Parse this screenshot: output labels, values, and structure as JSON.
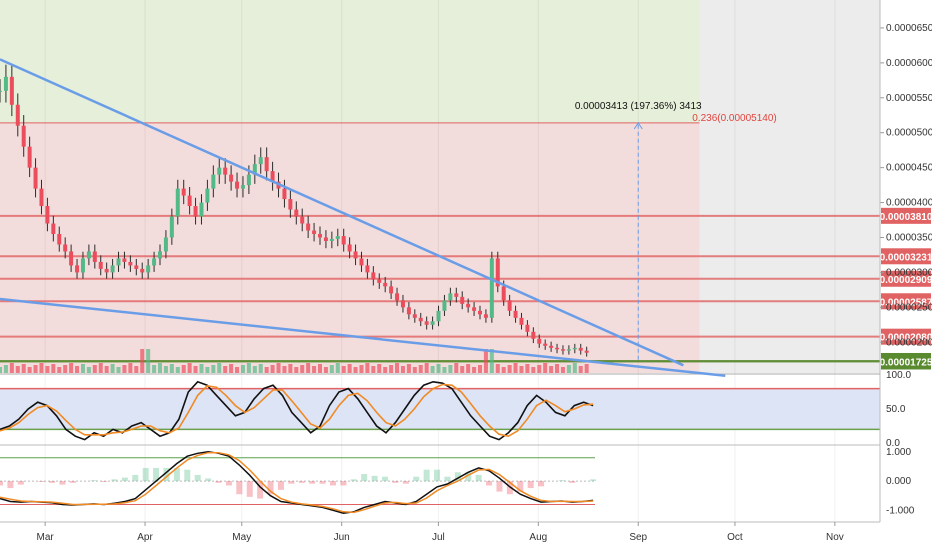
{
  "colors": {
    "bg": "#ffffff",
    "profit_zone": "#e6efd9",
    "loss_zone": "#f3dcdc",
    "future_zone": "#ececec",
    "up": "#53b987",
    "down": "#eb4d5c",
    "wick": "#2b2b2b",
    "resistance": "#e06262",
    "support": "#5a8a2f",
    "trendline": "#6a9de8",
    "stoch_k": "#111111",
    "stoch_d": "#f08a24",
    "stoch_band": "#dde4f5",
    "stoch_hi": "#e06262",
    "stoch_lo": "#6aa04a",
    "axis_text": "#333333"
  },
  "axis": {
    "months": [
      {
        "label": "Mar",
        "date": "2018-03-01"
      },
      {
        "label": "Apr",
        "date": "2018-04-01"
      },
      {
        "label": "May",
        "date": "2018-05-01"
      },
      {
        "label": "Jun",
        "date": "2018-06-01"
      },
      {
        "label": "Jul",
        "date": "2018-07-01"
      },
      {
        "label": "Aug",
        "date": "2018-08-01"
      },
      {
        "label": "Sep",
        "date": "2018-09-01"
      },
      {
        "label": "Oct",
        "date": "2018-10-01"
      },
      {
        "label": "Nov",
        "date": "2018-11-01"
      }
    ],
    "price_ticks": [
      "0.00006500",
      "0.00006000",
      "0.00005500",
      "0.00005000",
      "0.00004500",
      "0.00004000",
      "0.00003500",
      "0.00003000",
      "0.00002500",
      "0.00002000"
    ],
    "stoch_ticks": [
      "100.0",
      "50.0",
      "0.0"
    ],
    "macd_ticks": [
      "1.000",
      "0.000",
      "-1.000"
    ]
  },
  "annotations": {
    "measure": "0.00003413 (197.36%) 3413",
    "fib": "0.236(0.00005140)"
  },
  "chart_data": [
    {
      "type": "candlestick",
      "title": "",
      "x_range": [
        "2018-02-15",
        "2018-11-15"
      ],
      "ylim": [
        1.56e-05,
        6.9e-05
      ],
      "levels": [
        {
          "value": "0.00003810",
          "kind": "resistance"
        },
        {
          "value": "0.00003231",
          "kind": "resistance"
        },
        {
          "value": "0.00002909",
          "kind": "resistance"
        },
        {
          "value": "0.00002587",
          "kind": "resistance"
        },
        {
          "value": "0.00002080",
          "kind": "resistance"
        },
        {
          "value": "0.00001732",
          "kind": "support"
        },
        {
          "value": "0.00001725",
          "kind": "support"
        }
      ],
      "fib_level": 5.14e-05,
      "trendlines": [
        {
          "name": "upper",
          "from": [
            "2018-02-15",
            6.05e-05
          ],
          "to": [
            "2018-09-15",
            1.67e-05
          ]
        },
        {
          "name": "lower",
          "from": [
            "2018-02-15",
            2.62e-05
          ],
          "to": [
            "2018-09-28",
            1.52e-05
          ]
        }
      ],
      "projection": {
        "date": "2018-09-01",
        "from": 1.75e-05,
        "to": 5.14e-05
      },
      "zones": {
        "profit_top": 6.9e-05,
        "loss_top": 5.14e-05,
        "zone_end": "2018-09-20"
      },
      "series": {
        "start": "2018-02-15",
        "close": [
          5.6e-05,
          5.8e-05,
          5.4e-05,
          5.1e-05,
          4.8e-05,
          4.5e-05,
          4.2e-05,
          3.95e-05,
          3.7e-05,
          3.55e-05,
          3.4e-05,
          3.3e-05,
          3.1e-05,
          3e-05,
          3.2e-05,
          3.3e-05,
          3.15e-05,
          3.05e-05,
          3e-05,
          3.1e-05,
          3.2e-05,
          3.15e-05,
          3.1e-05,
          3.05e-05,
          3e-05,
          3.1e-05,
          3.2e-05,
          3.3e-05,
          3.5e-05,
          3.8e-05,
          4.2e-05,
          4.1e-05,
          3.95e-05,
          3.8e-05,
          4e-05,
          4.2e-05,
          4.4e-05,
          4.5e-05,
          4.4e-05,
          4.3e-05,
          4.2e-05,
          4.25e-05,
          4.4e-05,
          4.55e-05,
          4.65e-05,
          4.45e-05,
          4.3e-05,
          4.2e-05,
          4.05e-05,
          3.9e-05,
          3.8e-05,
          3.7e-05,
          3.6e-05,
          3.55e-05,
          3.5e-05,
          3.45e-05,
          3.48e-05,
          3.52e-05,
          3.4e-05,
          3.3e-05,
          3.2e-05,
          3.1e-05,
          3e-05,
          2.9e-05,
          2.85e-05,
          2.8e-05,
          2.7e-05,
          2.6e-05,
          2.5e-05,
          2.4e-05,
          2.35e-05,
          2.3e-05,
          2.25e-05,
          2.3e-05,
          2.45e-05,
          2.6e-05,
          2.7e-05,
          2.65e-05,
          2.55e-05,
          2.5e-05,
          2.45e-05,
          2.4e-05,
          2.35e-05,
          3.2e-05,
          2.8e-05,
          2.6e-05,
          2.45e-05,
          2.35e-05,
          2.25e-05,
          2.15e-05,
          2.05e-05,
          1.98e-05,
          1.95e-05,
          1.92e-05,
          1.9e-05,
          1.88e-05,
          1.9e-05,
          1.92e-05,
          1.88e-05,
          1.85e-05
        ]
      },
      "volume_spikes": [
        "2018-04-01",
        "2018-07-16",
        "2018-07-18"
      ]
    },
    {
      "type": "line",
      "title": "",
      "ylim": [
        0,
        100
      ],
      "band": [
        20,
        80
      ],
      "series": [
        {
          "values": [
            20,
            25,
            35,
            50,
            60,
            55,
            40,
            20,
            10,
            5,
            15,
            10,
            20,
            15,
            25,
            30,
            20,
            10,
            15,
            35,
            75,
            90,
            85,
            70,
            55,
            40,
            45,
            65,
            80,
            85,
            70,
            45,
            30,
            15,
            25,
            55,
            75,
            80,
            65,
            45,
            25,
            15,
            30,
            50,
            70,
            85,
            90,
            88,
            80,
            60,
            40,
            25,
            10,
            5,
            15,
            30,
            55,
            70,
            60,
            45,
            40,
            55,
            60,
            55
          ]
        },
        {
          "values": [
            18,
            22,
            30,
            42,
            52,
            55,
            47,
            33,
            20,
            12,
            12,
            12,
            15,
            16,
            20,
            25,
            25,
            18,
            15,
            22,
            45,
            70,
            84,
            82,
            70,
            55,
            45,
            52,
            65,
            78,
            78,
            62,
            45,
            28,
            22,
            35,
            55,
            70,
            73,
            62,
            45,
            30,
            25,
            35,
            50,
            68,
            80,
            86,
            85,
            75,
            58,
            40,
            25,
            13,
            10,
            18,
            35,
            55,
            63,
            55,
            46,
            50,
            56,
            57
          ]
        }
      ]
    },
    {
      "type": "line",
      "title": "",
      "ylim": [
        -1.4,
        1.2
      ],
      "hline": [
        0.8,
        -0.8
      ],
      "series": [
        {
          "values": [
            -0.6,
            -0.7,
            -0.72,
            -0.7,
            -0.72,
            -0.74,
            -0.8,
            -0.82,
            -0.8,
            -0.78,
            -0.8,
            -0.76,
            -0.7,
            -0.6,
            -0.3,
            0.0,
            0.3,
            0.6,
            0.85,
            0.95,
            1.0,
            0.95,
            0.85,
            0.55,
            0.2,
            -0.2,
            -0.5,
            -0.7,
            -0.75,
            -0.8,
            -0.85,
            -0.9,
            -1.0,
            -1.1,
            -1.05,
            -0.9,
            -0.8,
            -0.7,
            -0.75,
            -0.8,
            -0.7,
            -0.45,
            -0.2,
            -0.1,
            0.1,
            0.3,
            0.45,
            0.35,
            0.1,
            -0.2,
            -0.45,
            -0.6,
            -0.72,
            -0.7,
            -0.68,
            -0.72,
            -0.7,
            -0.66
          ]
        },
        {
          "values": [
            -0.55,
            -0.62,
            -0.68,
            -0.7,
            -0.71,
            -0.72,
            -0.76,
            -0.8,
            -0.8,
            -0.79,
            -0.79,
            -0.78,
            -0.74,
            -0.67,
            -0.45,
            -0.15,
            0.15,
            0.45,
            0.72,
            0.88,
            0.97,
            0.97,
            0.9,
            0.7,
            0.38,
            0.0,
            -0.35,
            -0.6,
            -0.72,
            -0.78,
            -0.82,
            -0.87,
            -0.95,
            -1.05,
            -1.07,
            -0.98,
            -0.86,
            -0.75,
            -0.73,
            -0.77,
            -0.75,
            -0.58,
            -0.33,
            -0.15,
            0.0,
            0.2,
            0.38,
            0.4,
            0.22,
            -0.05,
            -0.33,
            -0.52,
            -0.66,
            -0.7,
            -0.69,
            -0.7,
            -0.7,
            -0.68
          ]
        }
      ]
    }
  ]
}
